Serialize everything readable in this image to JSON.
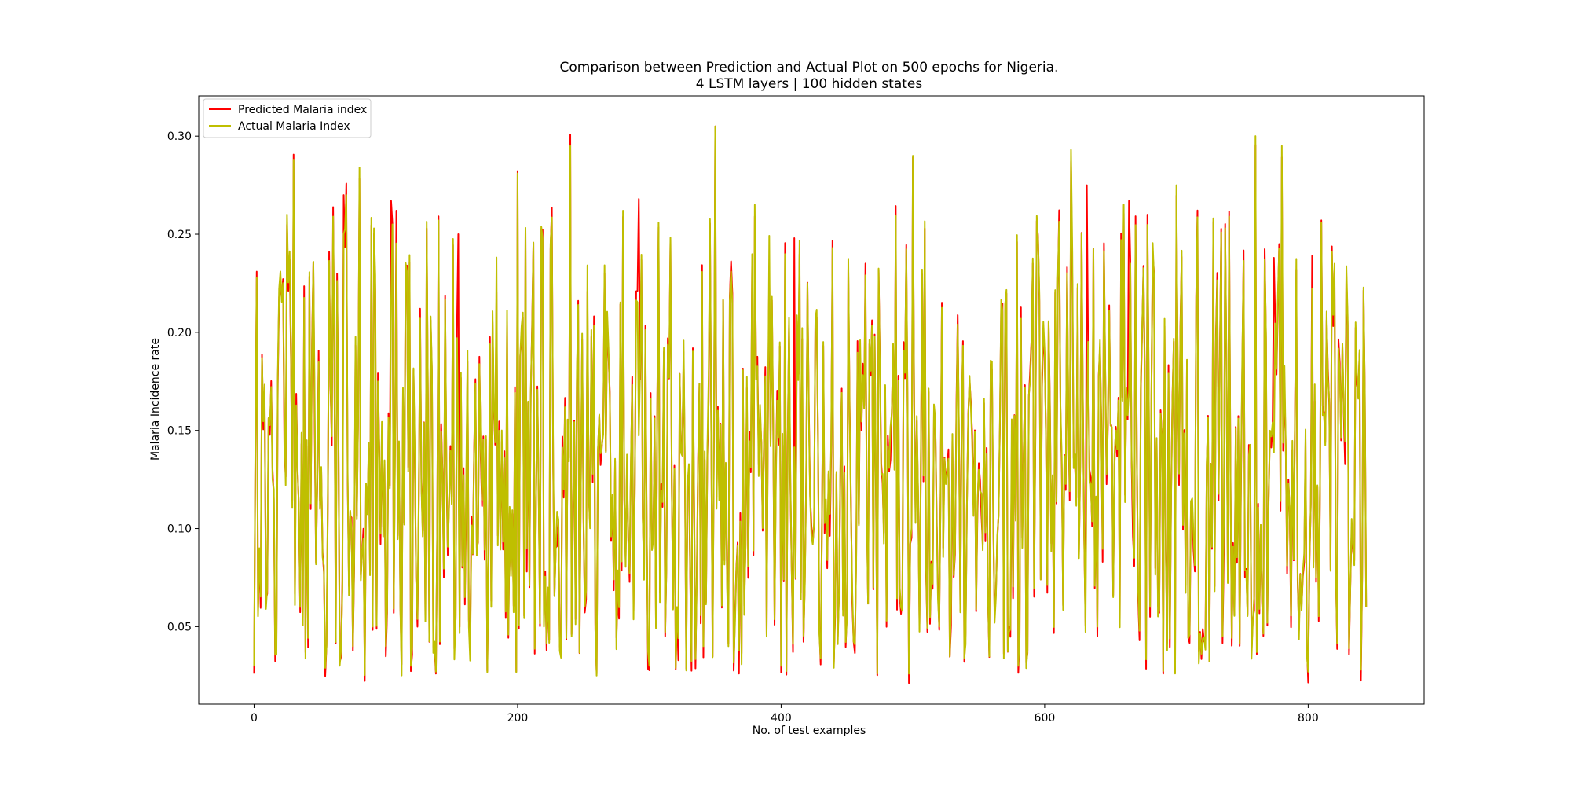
{
  "chart_data": {
    "type": "line",
    "title": "Comparison between Prediction and Actual Plot on 500 epochs for Nigeria.",
    "subtitle": "4 LSTM layers | 100 hidden states",
    "xlabel": "No. of test examples",
    "ylabel": "Malaria Incidence rate",
    "xlim": [
      -42,
      888
    ],
    "ylim": [
      0.0105,
      0.3205
    ],
    "xticks": [
      0,
      200,
      400,
      600,
      800
    ],
    "yticks": [
      0.05,
      0.1,
      0.15,
      0.2,
      0.25,
      0.3
    ],
    "xtick_labels": [
      "0",
      "200",
      "400",
      "600",
      "800"
    ],
    "ytick_labels": [
      "0.05",
      "0.10",
      "0.15",
      "0.20",
      "0.25",
      "0.30"
    ],
    "grid": false,
    "legend_position": "top-left",
    "n_points": 845,
    "series": [
      {
        "name": "Predicted Malaria index",
        "color": "#ff0000"
      },
      {
        "name": "Actual Malaria Index",
        "color": "#bfbf00"
      }
    ],
    "actual_sample": {
      "x": [
        0,
        2,
        4,
        6,
        10,
        15,
        20,
        25,
        30,
        35,
        40,
        45,
        50,
        55,
        60,
        65,
        70,
        75,
        80,
        90,
        100,
        105,
        120,
        140,
        160,
        180,
        200,
        220,
        240,
        260,
        280,
        300,
        320,
        350,
        360,
        380,
        400,
        420,
        440,
        460,
        480,
        500,
        520,
        540,
        560,
        580,
        600,
        620,
        640,
        660,
        680,
        700,
        720,
        740,
        760,
        780,
        800,
        820,
        840,
        845
      ],
      "y": [
        0.03,
        0.228,
        0.09,
        0.187,
        0.07,
        0.12,
        0.231,
        0.26,
        0.288,
        0.06,
        0.145,
        0.236,
        0.11,
        0.04,
        0.259,
        0.03,
        0.27,
        0.04,
        0.284,
        0.05,
        0.04,
        0.255,
        0.04,
        0.257,
        0.065,
        0.06,
        0.281,
        0.05,
        0.295,
        0.025,
        0.262,
        0.03,
        0.029,
        0.305,
        0.04,
        0.265,
        0.03,
        0.225,
        0.029,
        0.196,
        0.053,
        0.29,
        0.05,
        0.041,
        0.185,
        0.03,
        0.19,
        0.293,
        0.05,
        0.265,
        0.06,
        0.275,
        0.044,
        0.259,
        0.3,
        0.295,
        0.027,
        0.235,
        0.028,
        0.141
      ]
    },
    "predicted_excess_peaks": [
      {
        "x": 20,
        "y": 0.223
      },
      {
        "x": 68,
        "y": 0.27
      },
      {
        "x": 104,
        "y": 0.267
      },
      {
        "x": 108,
        "y": 0.262
      },
      {
        "x": 155,
        "y": 0.25
      },
      {
        "x": 292,
        "y": 0.268
      },
      {
        "x": 350,
        "y": 0.305
      },
      {
        "x": 410,
        "y": 0.248
      },
      {
        "x": 632,
        "y": 0.275
      },
      {
        "x": 664,
        "y": 0.267
      },
      {
        "x": 774,
        "y": 0.238
      },
      {
        "x": 803,
        "y": 0.239
      }
    ]
  }
}
